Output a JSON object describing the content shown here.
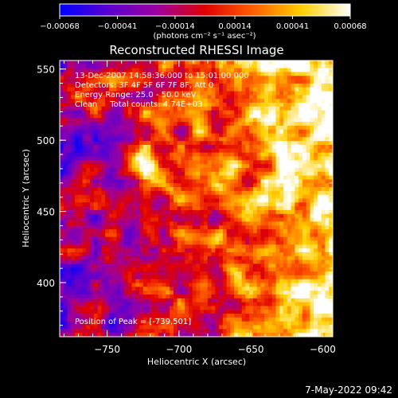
{
  "chart_data": {
    "type": "heatmap",
    "title": "Reconstructed RHESSI Image",
    "xlabel": "Heliocentric X (arcsec)",
    "ylabel": "Heliocentric Y (arcsec)",
    "xlim": [
      -783,
      -593
    ],
    "ylim": [
      362,
      556
    ],
    "x_ticks": [
      -750,
      -700,
      -650,
      -600
    ],
    "x_tick_labels": [
      "−750",
      "−700",
      "−650",
      "−600"
    ],
    "y_ticks": [
      400,
      450,
      500,
      550
    ],
    "y_tick_labels": [
      "400",
      "450",
      "500",
      "550"
    ],
    "colorbar": {
      "ticks": [
        -0.00068,
        -0.00041,
        -0.00014,
        0.00014,
        0.00041,
        0.00068
      ],
      "tick_labels": [
        "−0.00068",
        "−0.00041",
        "−0.00014",
        "0.00014",
        "0.00041",
        "0.00068"
      ],
      "units": "(photons cm⁻² s⁻¹ asec⁻²)",
      "range": [
        -0.00068,
        0.00068
      ],
      "colormap_stops": [
        "#0000ff",
        "#5a00d0",
        "#9b00a0",
        "#e00000",
        "#ff6000",
        "#ffd000",
        "#ffffff"
      ]
    },
    "annotations": [
      "13-Dec-2007 14:58:36.000 to 15:01:00.000",
      "Detectors: 3F 4F 5F 6F 7F 8F, Att 0",
      "Energy Range: 25.0 - 50.0 keV",
      "Clean     Total counts: 4.74E+03",
      "Position of Peak = [-739,501]"
    ],
    "peak": [
      -739,
      501
    ],
    "footer": "7-May-2022 09:42"
  }
}
